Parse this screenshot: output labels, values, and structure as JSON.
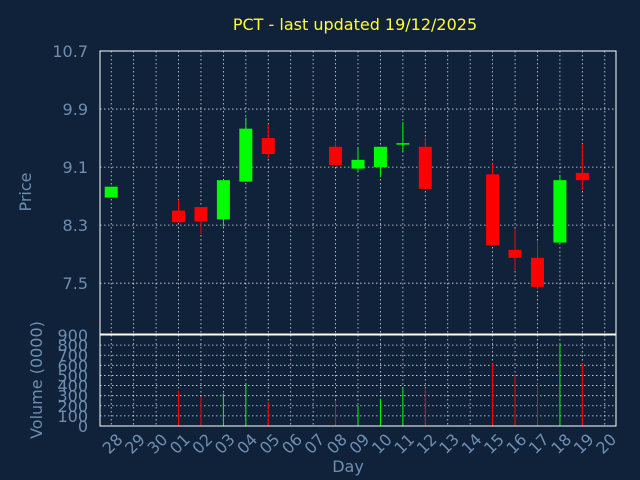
{
  "chart_data": {
    "type": "candlestick",
    "title": "PCT - last updated 19/12/2025",
    "colors": {
      "background": "#10213a",
      "axis_text": "#6f8fb0",
      "frame": "#ffffff",
      "grid": "#ffffff",
      "title": "#ffff33",
      "up": "#00ff00",
      "down": "#ff0000"
    },
    "grid": true,
    "x_tick_labels": [
      "28",
      "29",
      "30",
      "01",
      "02",
      "03",
      "04",
      "05",
      "06",
      "07",
      "08",
      "09",
      "10",
      "11",
      "12",
      "13",
      "14",
      "15",
      "16",
      "17",
      "18",
      "19",
      "20"
    ],
    "xlabel": "Day",
    "price_panel": {
      "ylabel": "Price",
      "ylim": [
        6.8,
        10.7
      ],
      "y_ticks": [
        "10.7",
        "9.9",
        "9.1",
        "8.3",
        "7.5"
      ],
      "y_tick_values": [
        10.7,
        9.9,
        9.1,
        8.3,
        7.5
      ],
      "candles": [
        {
          "day": "28",
          "open": 8.68,
          "close": 8.83,
          "high": 8.83,
          "low": 8.68
        },
        {
          "day": "01",
          "open": 8.5,
          "close": 8.34,
          "high": 8.65,
          "low": 8.34
        },
        {
          "day": "02",
          "open": 8.55,
          "close": 8.35,
          "high": 8.55,
          "low": 8.18
        },
        {
          "day": "03",
          "open": 8.38,
          "close": 8.92,
          "high": 8.92,
          "low": 8.28
        },
        {
          "day": "04",
          "open": 8.9,
          "close": 9.63,
          "high": 9.78,
          "low": 8.9
        },
        {
          "day": "05",
          "open": 9.5,
          "close": 9.28,
          "high": 9.68,
          "low": 9.22
        },
        {
          "day": "08",
          "open": 9.38,
          "close": 9.13,
          "high": 9.45,
          "low": 9.13
        },
        {
          "day": "09",
          "open": 9.08,
          "close": 9.2,
          "high": 9.36,
          "low": 9.05
        },
        {
          "day": "10",
          "open": 9.1,
          "close": 9.38,
          "high": 9.38,
          "low": 8.96
        },
        {
          "day": "11",
          "open": 9.42,
          "close": 9.43,
          "high": 9.72,
          "low": 9.32
        },
        {
          "day": "12",
          "open": 9.38,
          "close": 8.8,
          "high": 9.5,
          "low": 8.8
        },
        {
          "day": "15",
          "open": 9.0,
          "close": 8.02,
          "high": 9.15,
          "low": 8.02
        },
        {
          "day": "16",
          "open": 7.96,
          "close": 7.85,
          "high": 8.25,
          "low": 7.68
        },
        {
          "day": "17",
          "open": 7.85,
          "close": 7.45,
          "high": 8.08,
          "low": 7.42
        },
        {
          "day": "18",
          "open": 8.06,
          "close": 8.92,
          "high": 8.98,
          "low": 8.06
        },
        {
          "day": "19",
          "open": 9.02,
          "close": 8.92,
          "high": 9.42,
          "low": 8.78
        }
      ]
    },
    "volume_panel": {
      "ylabel": "Volume (0000)",
      "ylim": [
        0,
        900
      ],
      "y_ticks": [
        "900",
        "800",
        "700",
        "600",
        "500",
        "400",
        "300",
        "200",
        "100",
        "0"
      ],
      "y_tick_values": [
        900,
        800,
        700,
        600,
        500,
        400,
        300,
        200,
        100,
        0
      ],
      "bars": [
        {
          "day": "01",
          "value": 350,
          "direction": "down"
        },
        {
          "day": "02",
          "value": 290,
          "direction": "down"
        },
        {
          "day": "03",
          "value": 320,
          "direction": "up"
        },
        {
          "day": "04",
          "value": 420,
          "direction": "up"
        },
        {
          "day": "05",
          "value": 240,
          "direction": "down"
        },
        {
          "day": "08",
          "value": 250,
          "direction": "down"
        },
        {
          "day": "09",
          "value": 200,
          "direction": "up"
        },
        {
          "day": "10",
          "value": 270,
          "direction": "up"
        },
        {
          "day": "11",
          "value": 370,
          "direction": "up"
        },
        {
          "day": "12",
          "value": 360,
          "direction": "down"
        },
        {
          "day": "15",
          "value": 620,
          "direction": "down"
        },
        {
          "day": "16",
          "value": 500,
          "direction": "down"
        },
        {
          "day": "17",
          "value": 420,
          "direction": "down"
        },
        {
          "day": "18",
          "value": 820,
          "direction": "up"
        },
        {
          "day": "19",
          "value": 620,
          "direction": "down"
        }
      ]
    }
  }
}
